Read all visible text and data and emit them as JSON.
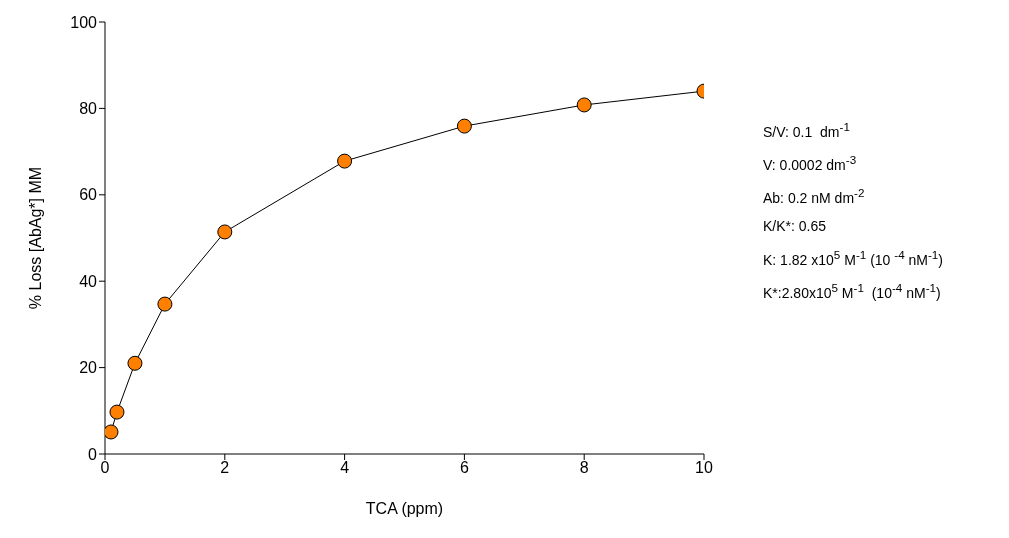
{
  "chart_data": {
    "type": "line",
    "xlabel": "TCA (ppm)",
    "ylabel": "% Loss [AbAg*] MM",
    "x": [
      0.1,
      0.2,
      0.5,
      1,
      2,
      4,
      6,
      8,
      10
    ],
    "series": [
      {
        "color": "#ff8000",
        "values": [
          5.1,
          9.7,
          21,
          34.7,
          51.4,
          67.8,
          75.9,
          80.8,
          84
        ]
      }
    ],
    "xlim": [
      0,
      10
    ],
    "xticks": [
      0,
      2,
      4,
      6,
      8,
      10
    ],
    "ylim": [
      0,
      100
    ],
    "yticks": [
      0,
      20,
      40,
      60,
      80,
      100
    ],
    "grid": false,
    "legend": false,
    "marker": "circle",
    "line_style": "solid",
    "annotations": [
      "S/V: 0.1  dm$^{-1}$",
      "V: 0.0002 dm$^{-3}$",
      "Ab: 0.2 nM dm$^{-2}$",
      "K/K*: 0.65",
      "K: 1.82 x10$^{5}$ M$^{-1}$ (10 $^{-4}$ nM$^{-1}$)",
      "K*:2.80x10$^{5}$ M$^{-1}$  (10$^{-4}$ nM$^{-1}$)"
    ]
  }
}
